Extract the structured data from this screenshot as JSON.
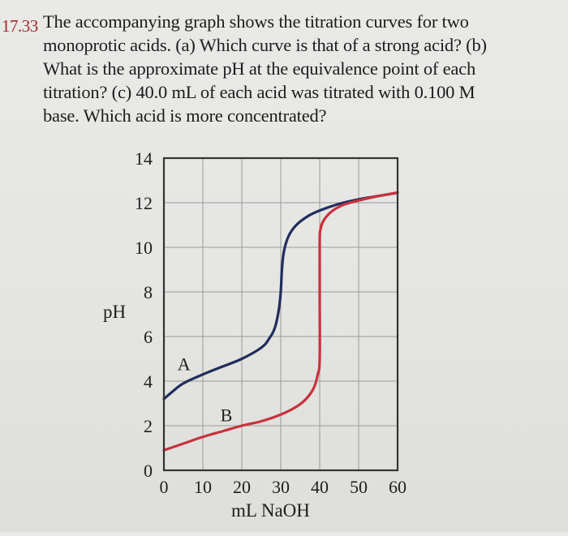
{
  "problem": {
    "number": "17.33",
    "lines": [
      "The accompanying graph shows the titration curves for two",
      "monoprotic acids. (a) Which curve is that of a strong acid? (b)",
      "What is the approximate pH at the equivalence point of each",
      "titration? (c) 40.0 mL of each acid was titrated with 0.100 M",
      "base. Which acid is more concentrated?"
    ],
    "parts": {
      "a": "(a) Which curve is that of a strong acid?",
      "b": "(b) What is the approximate pH at the equivalence point of each titration?",
      "c": "(c) 40.0 mL of each acid was titrated with 0.100 M base. Which acid is more concentrated?"
    }
  },
  "colors": {
    "problem_number": "#9b2a2a",
    "curve_A": "#1f2d5c",
    "curve_B": "#c8323c",
    "grid": "#9a9a9a",
    "frame": "#333333"
  },
  "chart_data": {
    "type": "line",
    "title": "",
    "xlabel": "mL NaOH",
    "ylabel": "pH",
    "xlim": [
      0,
      60
    ],
    "ylim": [
      0,
      14
    ],
    "x_ticks": [
      0,
      10,
      20,
      30,
      40,
      50,
      60
    ],
    "y_ticks": [
      0,
      2,
      4,
      6,
      8,
      10,
      12,
      14
    ],
    "grid": true,
    "legend": "inline labels (A, B)",
    "series": [
      {
        "name": "A",
        "label_position": {
          "x": 3.5,
          "y": 4.5
        },
        "x": [
          0,
          2,
          5,
          10,
          15,
          20,
          25,
          27,
          28.5,
          29.5,
          30,
          30.3,
          30.8,
          32,
          34,
          37,
          40,
          45,
          50,
          55,
          60
        ],
        "y": [
          3.2,
          3.5,
          3.9,
          4.3,
          4.65,
          5.0,
          5.5,
          5.9,
          6.4,
          7.2,
          8.0,
          9.0,
          9.8,
          10.5,
          11.0,
          11.4,
          11.65,
          11.95,
          12.15,
          12.3,
          12.45
        ]
      },
      {
        "name": "B",
        "label_position": {
          "x": 14.5,
          "y": 2.2
        },
        "x": [
          0,
          5,
          10,
          15,
          20,
          25,
          30,
          34,
          36.5,
          38.5,
          39.5,
          40,
          40,
          40,
          40.2,
          41,
          43,
          46,
          50,
          55,
          60
        ],
        "y": [
          0.9,
          1.2,
          1.5,
          1.75,
          2.0,
          2.2,
          2.5,
          2.85,
          3.2,
          3.7,
          4.3,
          5.0,
          8.0,
          10.3,
          10.8,
          11.2,
          11.6,
          11.9,
          12.1,
          12.3,
          12.45
        ]
      }
    ]
  }
}
